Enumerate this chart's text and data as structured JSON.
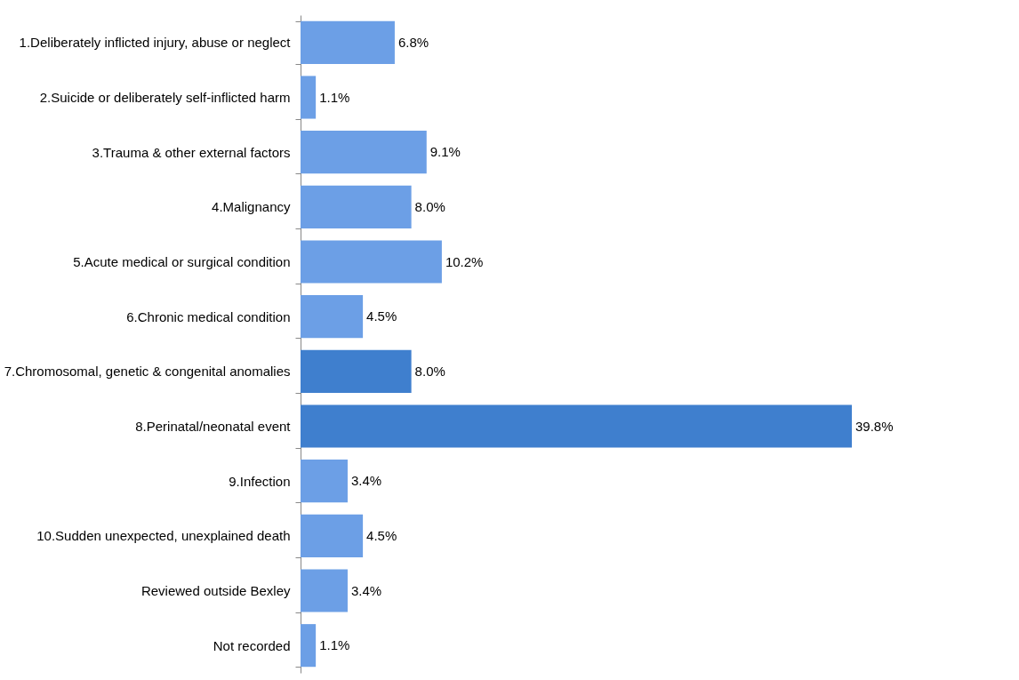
{
  "chart_data": {
    "type": "bar",
    "orientation": "horizontal",
    "categories": [
      "1.Deliberately inflicted injury, abuse or neglect",
      "2.Suicide or deliberately self-inflicted harm",
      "3.Trauma & other external factors",
      "4.Malignancy",
      "5.Acute medical or surgical condition",
      "6.Chronic medical condition",
      "7.Chromosomal, genetic & congenital anomalies",
      "8.Perinatal/neonatal event",
      "9.Infection",
      "10.Sudden unexpected, unexplained death",
      "Reviewed outside Bexley",
      "Not recorded"
    ],
    "values": [
      6.8,
      1.1,
      9.1,
      8.0,
      10.2,
      4.5,
      8.0,
      39.8,
      3.4,
      4.5,
      3.4,
      1.1
    ],
    "value_labels": [
      "6.8%",
      "1.1%",
      "9.1%",
      "8.0%",
      "10.2%",
      "4.5%",
      "8.0%",
      "39.8%",
      "3.4%",
      "4.5%",
      "3.4%",
      "1.1%"
    ],
    "colors": [
      "#6c9fe6",
      "#6c9fe6",
      "#6c9fe6",
      "#6c9fe6",
      "#6c9fe6",
      "#6c9fe6",
      "#3f7fce",
      "#3f7fce",
      "#6c9fe6",
      "#6c9fe6",
      "#6c9fe6",
      "#6c9fe6"
    ],
    "grid": false
  }
}
